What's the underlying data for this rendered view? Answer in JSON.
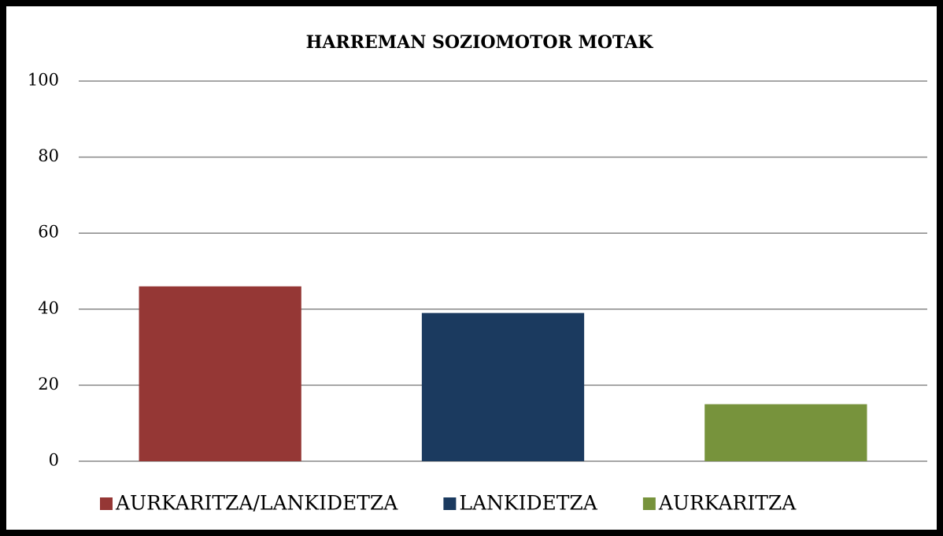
{
  "chart_data": {
    "type": "bar",
    "title": "HARREMAN SOZIOMOTOR MOTAK",
    "series": [
      {
        "name": "AURKARITZA/LANKIDETZA",
        "color": "#953735",
        "values": [
          46
        ]
      },
      {
        "name": "LANKIDETZA",
        "color": "#1b3a5f",
        "values": [
          39
        ]
      },
      {
        "name": "AURKARITZA",
        "color": "#77933c",
        "values": [
          15
        ]
      }
    ],
    "ylim": [
      0,
      100
    ],
    "yticks": [
      0,
      20,
      40,
      60,
      80,
      100
    ],
    "grid": true,
    "legend": "bottom"
  }
}
